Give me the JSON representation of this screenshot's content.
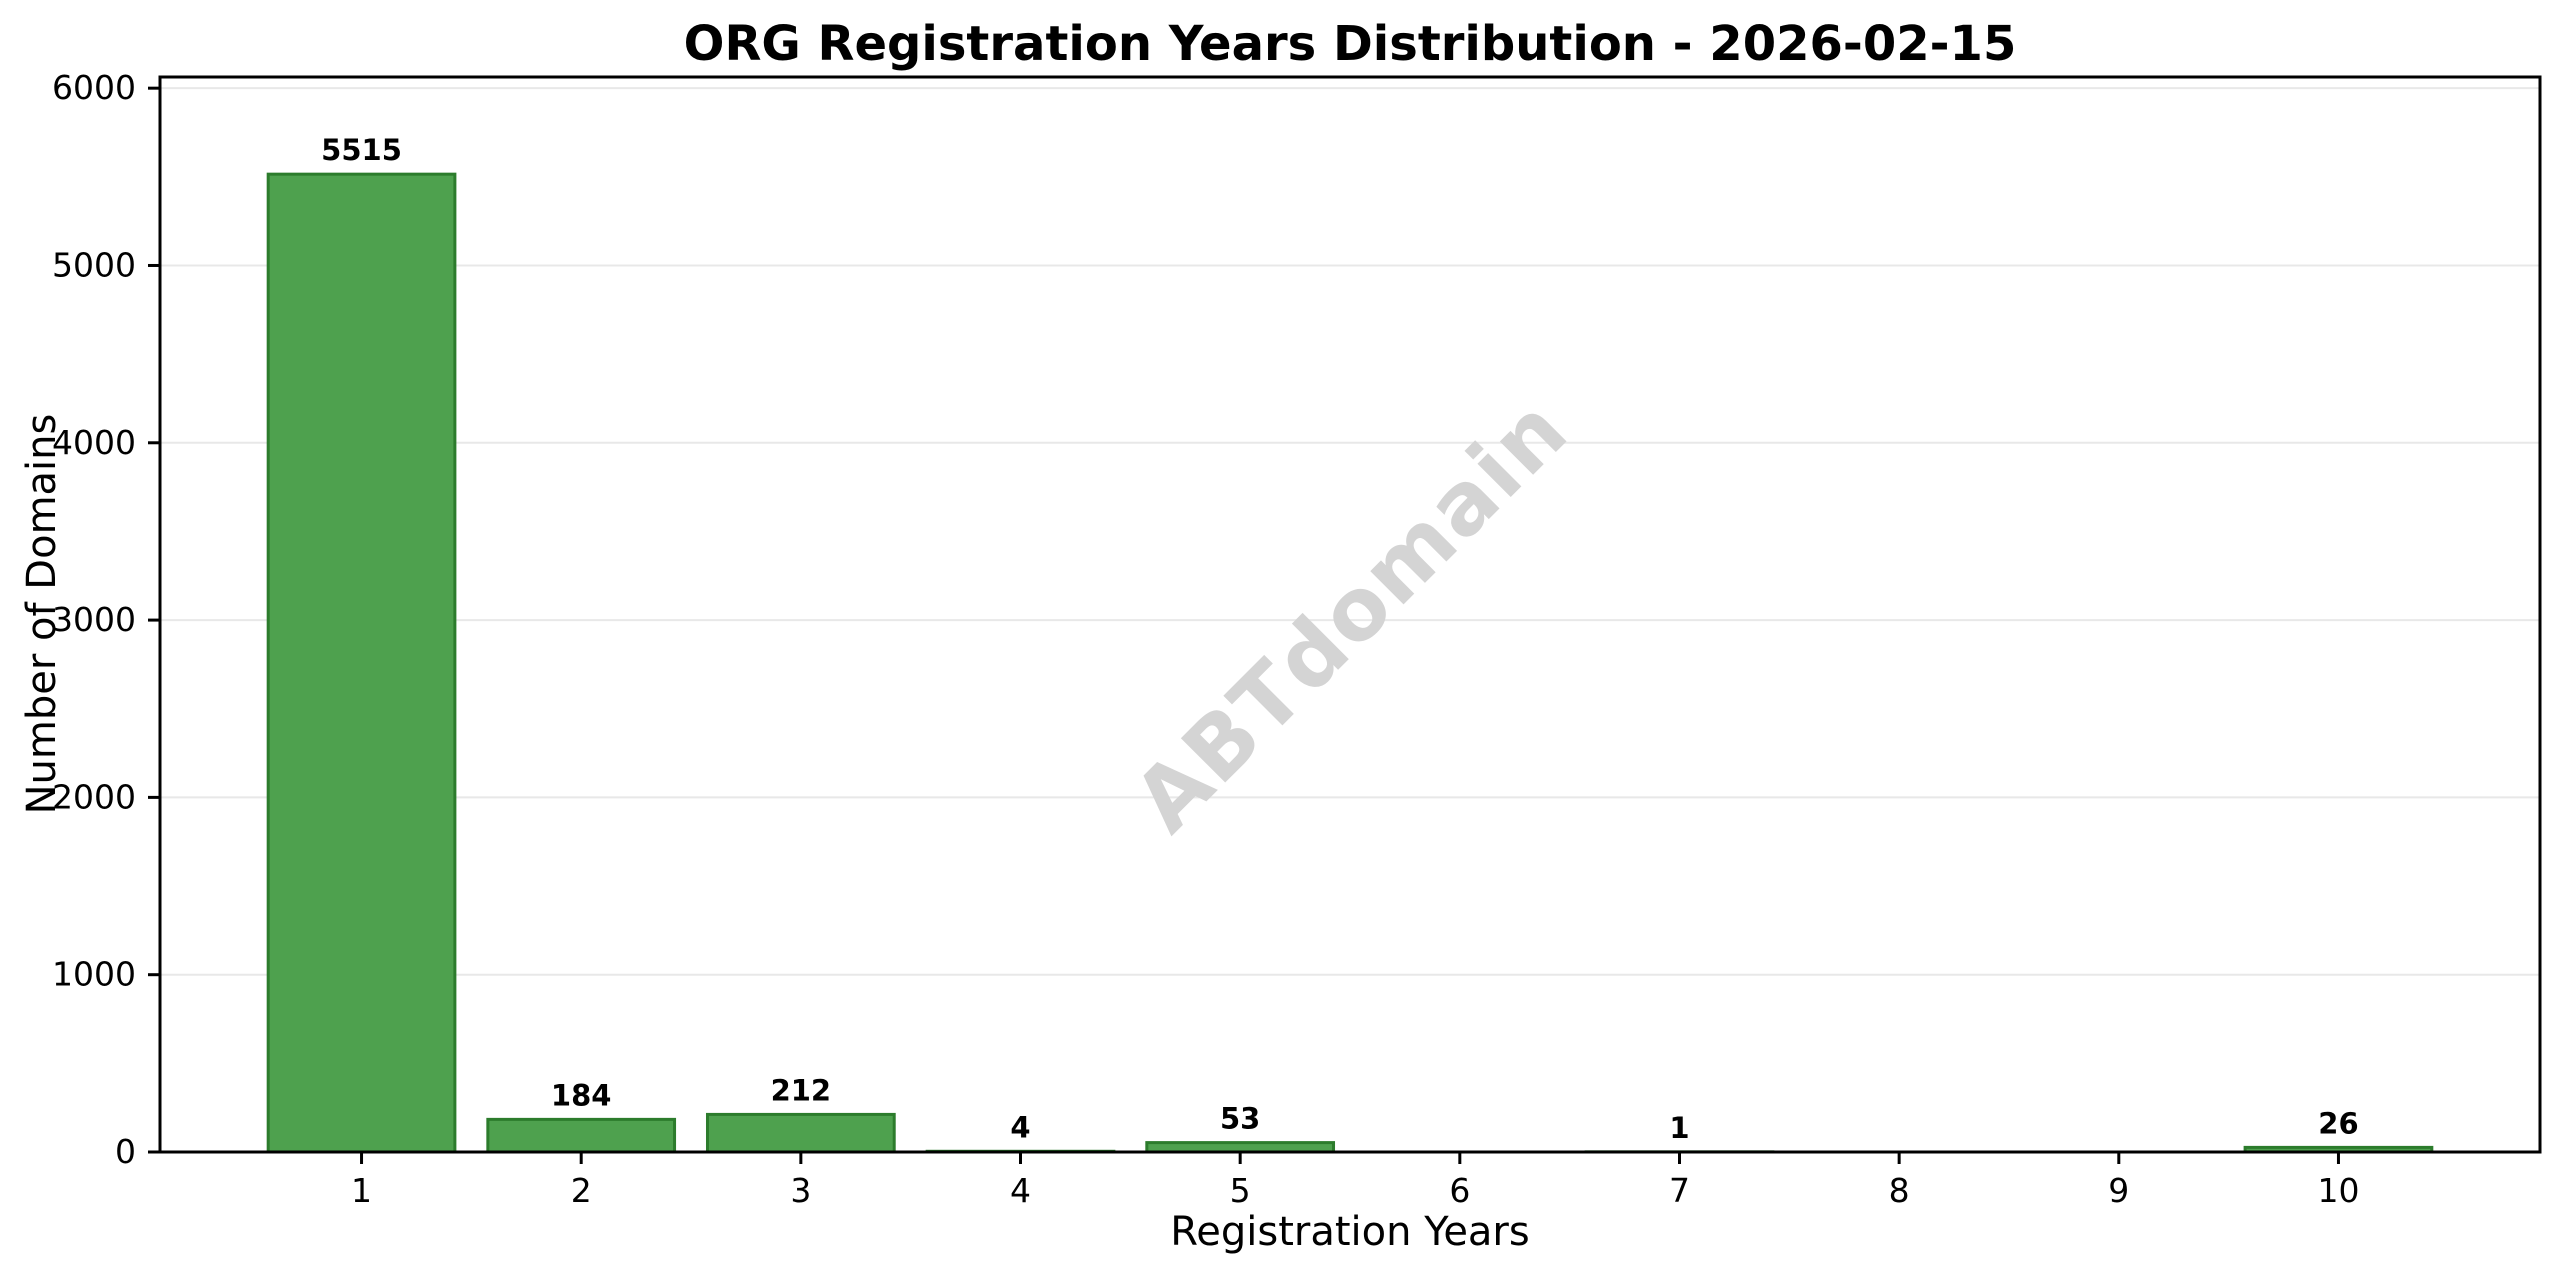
{
  "figure": {
    "background": "#ffffff"
  },
  "chart_data": {
    "type": "bar",
    "title": "ORG Registration Years Distribution - 2026-02-15",
    "xlabel": "Registration Years",
    "ylabel": "Number of Domains",
    "categories": [
      "1",
      "2",
      "3",
      "4",
      "5",
      "6",
      "7",
      "8",
      "9",
      "10"
    ],
    "values": [
      5515,
      184,
      212,
      4,
      53,
      0,
      1,
      0,
      0,
      26
    ],
    "bar_labels": [
      "5515",
      "184",
      "212",
      "4",
      "53",
      "",
      "1",
      "",
      "",
      "26"
    ],
    "yticks": [
      0,
      1000,
      2000,
      3000,
      4000,
      5000,
      6000
    ],
    "ylim": [
      0,
      6063
    ],
    "xlim_units": [
      0.0825,
      10.9175
    ],
    "bar_width_units": 0.85,
    "grid": "horizontal",
    "legend": "none",
    "watermark": "ABTdomain",
    "colors": {
      "bar_fill": "#4ea14e",
      "bar_edge": "#2c7c2c",
      "grid": "#e8e8e8",
      "axis": "#000000",
      "text": "#000000",
      "watermark": "#d4d4d4",
      "background": "#ffffff"
    }
  }
}
